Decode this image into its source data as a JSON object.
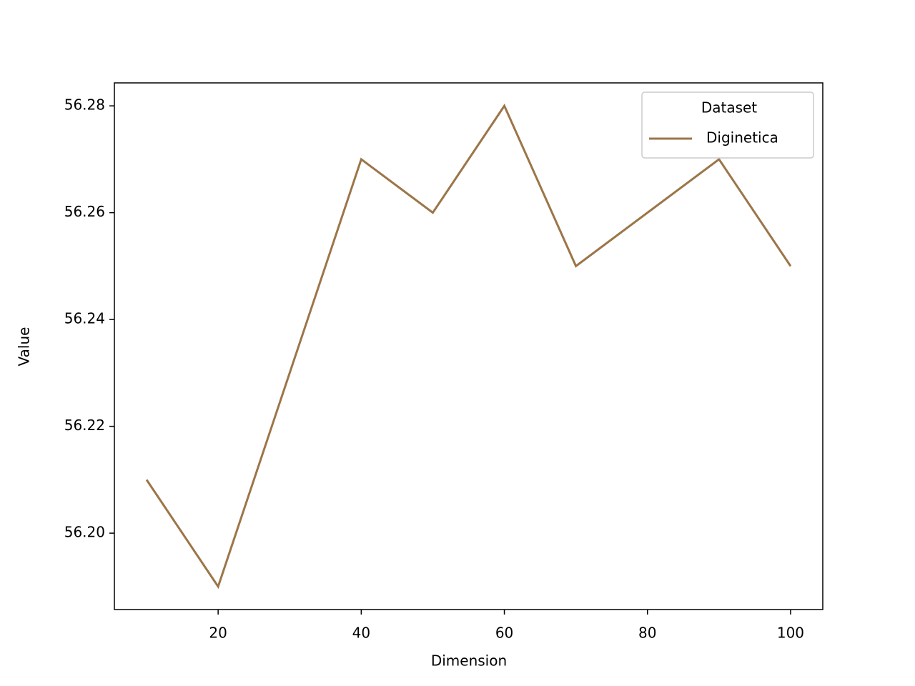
{
  "chart_data": {
    "type": "line",
    "x_label": "Dimension",
    "y_label": "Value",
    "x": [
      10,
      20,
      30,
      40,
      50,
      60,
      70,
      80,
      90,
      100
    ],
    "series": [
      {
        "name": "Diginetica",
        "color": "#9c7548",
        "values": [
          56.21,
          56.19,
          56.23,
          56.27,
          56.26,
          56.28,
          56.25,
          56.26,
          56.27,
          56.25
        ]
      }
    ],
    "legend_title": "Dataset",
    "legend_position": "upper right",
    "xlim": [
      5.5,
      104.5
    ],
    "xticks": [
      20,
      40,
      60,
      80,
      100
    ],
    "ylim": [
      56.1857,
      56.2843
    ],
    "yticks": [
      {
        "value": 56.2,
        "label": "56.20"
      },
      56.22,
      56.24,
      56.26,
      56.28
    ],
    "grid": false
  }
}
